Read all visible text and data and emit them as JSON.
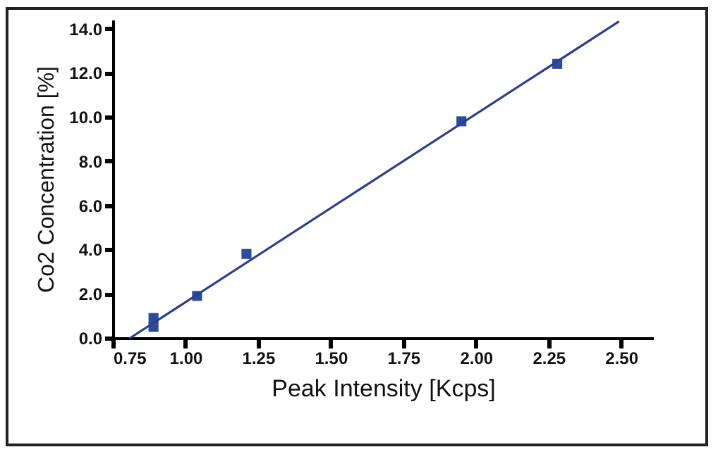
{
  "chart_data": {
    "type": "scatter",
    "xlabel": "Peak Intensity [Kcps]",
    "ylabel": "Co2 Concentration [%]",
    "xlim": [
      0.75,
      2.61
    ],
    "ylim": [
      0,
      14.4
    ],
    "xticks": [
      {
        "value": 0.75,
        "label": "0.75"
      },
      {
        "value": 1,
        "label": "1.00"
      },
      {
        "value": 1.25,
        "label": "1.25"
      },
      {
        "value": 1.5,
        "label": "1.50"
      },
      {
        "value": 1.75,
        "label": "1.75"
      },
      {
        "value": 2,
        "label": "2.00"
      },
      {
        "value": 2.25,
        "label": "2.25"
      },
      {
        "value": 2.5,
        "label": "2.50"
      }
    ],
    "yticks": [
      {
        "value": 0,
        "label": "0.0"
      },
      {
        "value": 2,
        "label": "2.0"
      },
      {
        "value": 4,
        "label": "4.0"
      },
      {
        "value": 6,
        "label": "6.0"
      },
      {
        "value": 8,
        "label": "8.0"
      },
      {
        "value": 10,
        "label": "10.0"
      },
      {
        "value": 12,
        "label": "12.0"
      },
      {
        "value": 14,
        "label": "14.0"
      }
    ],
    "grid": false,
    "series": [
      {
        "color": "#2e4a9a",
        "marker": "square",
        "x": [
          0.89,
          0.89,
          1.04,
          1.21,
          1.95,
          2.28
        ],
        "values": [
          0.5,
          0.9,
          1.9,
          3.8,
          9.8,
          12.4
        ]
      },
      {
        "type": "line",
        "color": "#2b3f8f",
        "x": [
          0.81,
          2.49
        ],
        "values": [
          0,
          14.3
        ]
      }
    ]
  }
}
